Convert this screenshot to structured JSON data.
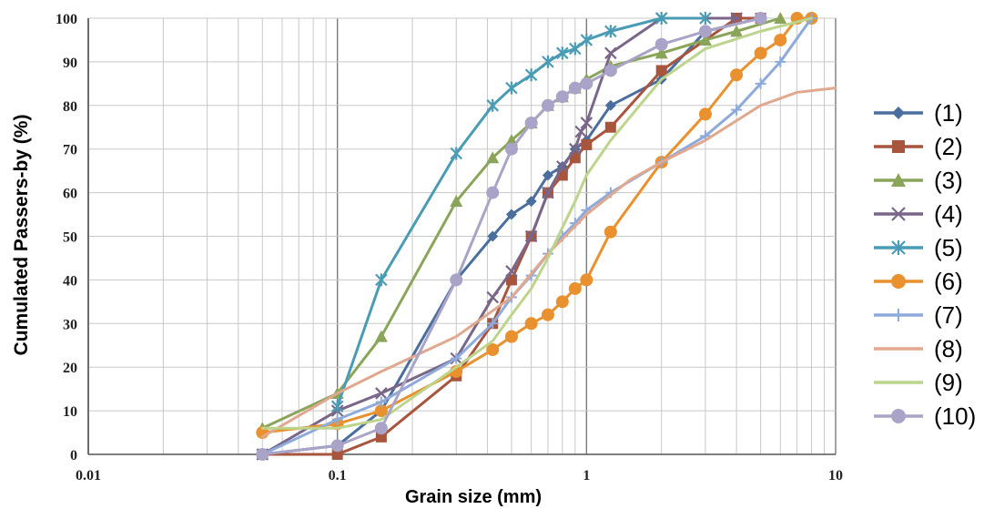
{
  "chart_data": {
    "type": "line",
    "xscale": "log",
    "xlabel": "Grain size (mm)",
    "ylabel": "Cumulated Passers-by (%)",
    "xlim": [
      0.01,
      10
    ],
    "ylim": [
      0,
      100
    ],
    "x_tick_labels": [
      "0.01",
      "0.1",
      "1",
      "10"
    ],
    "y_tick_labels": [
      "0",
      "10",
      "20",
      "30",
      "40",
      "50",
      "60",
      "70",
      "80",
      "90",
      "100"
    ],
    "grid": "on",
    "legend_position": "right",
    "series": [
      {
        "name": "(1)",
        "color": "#4a6f9e",
        "marker": "diamond",
        "x": [
          0.05,
          0.1,
          0.15,
          0.3,
          0.42,
          0.5,
          0.6,
          0.7,
          0.8,
          0.9,
          1.0,
          1.25,
          2.0,
          3.0,
          5.0
        ],
        "y": [
          0,
          2,
          10,
          40,
          50,
          55,
          58,
          64,
          66,
          70,
          72,
          80,
          86,
          97,
          100
        ]
      },
      {
        "name": "(2)",
        "color": "#a8553e",
        "marker": "square",
        "x": [
          0.05,
          0.1,
          0.15,
          0.3,
          0.42,
          0.5,
          0.6,
          0.7,
          0.8,
          0.9,
          1.0,
          1.25,
          2.0,
          4.0,
          5.0
        ],
        "y": [
          0,
          0,
          4,
          18,
          30,
          40,
          50,
          60,
          64,
          68,
          71,
          75,
          88,
          100,
          100
        ]
      },
      {
        "name": "(3)",
        "color": "#8aa55a",
        "marker": "triangle",
        "x": [
          0.05,
          0.1,
          0.15,
          0.3,
          0.42,
          0.5,
          0.6,
          0.7,
          0.8,
          0.9,
          1.0,
          1.25,
          2.0,
          3.0,
          4.0,
          6.0
        ],
        "y": [
          6,
          14,
          27,
          58,
          68,
          72,
          76,
          80,
          82,
          84,
          86,
          89,
          92,
          95,
          97,
          100
        ]
      },
      {
        "name": "(4)",
        "color": "#7a6688",
        "marker": "x",
        "x": [
          0.05,
          0.1,
          0.15,
          0.3,
          0.42,
          0.5,
          0.6,
          0.7,
          0.8,
          0.9,
          0.95,
          1.0,
          1.25,
          2.0,
          4.0
        ],
        "y": [
          0,
          10,
          14,
          22,
          36,
          42,
          50,
          60,
          66,
          70,
          74,
          76,
          92,
          100,
          100
        ]
      },
      {
        "name": "(5)",
        "color": "#4a9bb5",
        "marker": "star",
        "x": [
          0.1,
          0.15,
          0.3,
          0.42,
          0.5,
          0.6,
          0.7,
          0.8,
          0.9,
          1.0,
          1.25,
          2.0,
          3.0
        ],
        "y": [
          11,
          40,
          69,
          80,
          84,
          87,
          90,
          92,
          93,
          95,
          97,
          100,
          100
        ]
      },
      {
        "name": "(6)",
        "color": "#e8912e",
        "marker": "circle",
        "x": [
          0.05,
          0.1,
          0.15,
          0.3,
          0.42,
          0.5,
          0.6,
          0.7,
          0.8,
          0.9,
          1.0,
          1.25,
          2.0,
          3.0,
          4.0,
          5.0,
          6.0,
          7.0,
          8.0
        ],
        "y": [
          5,
          7,
          10,
          19,
          24,
          27,
          30,
          32,
          35,
          38,
          40,
          51,
          67,
          78,
          87,
          92,
          95,
          100,
          100
        ]
      },
      {
        "name": "(7)",
        "color": "#8eaadb",
        "marker": "plus",
        "x": [
          0.05,
          0.1,
          0.15,
          0.3,
          0.42,
          0.5,
          0.6,
          0.7,
          0.8,
          0.9,
          1.0,
          1.25,
          2.0,
          3.0,
          4.0,
          5.0,
          6.0,
          8.0
        ],
        "y": [
          0,
          8,
          12,
          22,
          30,
          36,
          41,
          46,
          50,
          53,
          56,
          60,
          67,
          73,
          79,
          85,
          90,
          100
        ]
      },
      {
        "name": "(8)",
        "color": "#e0a98f",
        "marker": "none",
        "x": [
          0.05,
          0.1,
          0.15,
          0.3,
          0.5,
          0.7,
          1.0,
          1.5,
          2.0,
          3.0,
          5.0,
          7.0,
          10.0
        ],
        "y": [
          4,
          14,
          19,
          27,
          36,
          46,
          55,
          63,
          67,
          72,
          80,
          83,
          84
        ]
      },
      {
        "name": "(9)",
        "color": "#bcd48c",
        "marker": "none",
        "x": [
          0.05,
          0.1,
          0.15,
          0.3,
          0.42,
          0.5,
          0.6,
          0.7,
          0.8,
          0.9,
          1.0,
          1.25,
          2.0,
          3.0,
          5.0,
          8.0
        ],
        "y": [
          6,
          6,
          8,
          20,
          26,
          32,
          38,
          45,
          52,
          58,
          64,
          72,
          86,
          93,
          97,
          100
        ]
      },
      {
        "name": "(10)",
        "color": "#aaa3c8",
        "marker": "circle",
        "x": [
          0.05,
          0.1,
          0.15,
          0.3,
          0.42,
          0.5,
          0.6,
          0.7,
          0.8,
          0.9,
          1.0,
          1.25,
          2.0,
          3.0,
          5.0
        ],
        "y": [
          0,
          2,
          6,
          40,
          60,
          70,
          76,
          80,
          82,
          84,
          85,
          88,
          94,
          97,
          100
        ]
      }
    ]
  }
}
